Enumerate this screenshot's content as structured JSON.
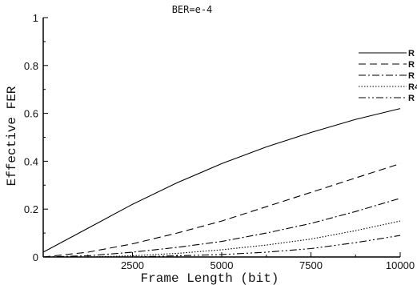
{
  "chart_data": {
    "type": "line",
    "title": "BER=e-4",
    "xlabel": "Frame Length (bit)",
    "ylabel": "Effective FER",
    "xlim": [
      0,
      10000
    ],
    "ylim": [
      0,
      1
    ],
    "xticks": [
      2500,
      5000,
      7500,
      10000
    ],
    "yticks": [
      0,
      0.2,
      0.4,
      0.6,
      0.8,
      1
    ],
    "ytick_labels": [
      "0",
      "0.2",
      "0.4",
      "0.6",
      "0.8",
      "1"
    ],
    "grid": false,
    "legend_position": "top-right",
    "x": [
      0,
      1250,
      2500,
      3750,
      5000,
      6250,
      7500,
      8750,
      10000
    ],
    "series": [
      {
        "name": "R",
        "style": "solid",
        "values": [
          0.02,
          0.12,
          0.22,
          0.31,
          0.39,
          0.46,
          0.52,
          0.575,
          0.62
        ]
      },
      {
        "name": "R",
        "style": "dashed",
        "values": [
          0.0,
          0.02,
          0.055,
          0.1,
          0.15,
          0.21,
          0.27,
          0.33,
          0.39
        ]
      },
      {
        "name": "R",
        "style": "dashdot",
        "values": [
          0.0,
          0.005,
          0.02,
          0.04,
          0.065,
          0.1,
          0.14,
          0.19,
          0.245
        ]
      },
      {
        "name": "R4",
        "style": "dotted",
        "values": [
          0.0,
          0.0,
          0.005,
          0.015,
          0.03,
          0.05,
          0.075,
          0.11,
          0.15
        ]
      },
      {
        "name": "R",
        "style": "dashdotdot",
        "values": [
          0.0,
          0.0,
          0.0,
          0.005,
          0.01,
          0.02,
          0.035,
          0.06,
          0.09
        ]
      }
    ]
  }
}
